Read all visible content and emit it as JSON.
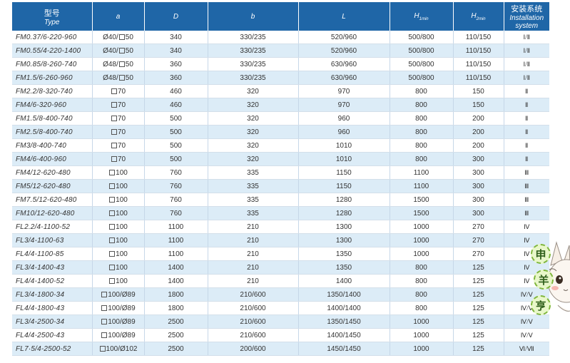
{
  "header": {
    "type_cn": "型号",
    "type_en": "Type",
    "a": "a",
    "D": "D",
    "b": "b",
    "L": "L",
    "H1": "H",
    "H1_sub": "1min",
    "H2": "H",
    "H2_sub": "2min",
    "install_cn": "安装系统",
    "install_en": "Installation system"
  },
  "rows": [
    {
      "type": "FM0.37/6-220-960",
      "a_prefix": "Ø40/",
      "a_square": true,
      "a_num": "50",
      "D": "340",
      "b": "330/235",
      "L": "520/960",
      "H1": "500/800",
      "H2": "110/150",
      "sys": "Ⅰ/Ⅱ"
    },
    {
      "type": "FM0.55/4-220-1400",
      "a_prefix": "Ø40/",
      "a_square": true,
      "a_num": "50",
      "D": "340",
      "b": "330/235",
      "L": "520/960",
      "H1": "500/800",
      "H2": "110/150",
      "sys": "Ⅰ/Ⅱ"
    },
    {
      "type": "FM0.85/8-260-740",
      "a_prefix": "Ø48/",
      "a_square": true,
      "a_num": "50",
      "D": "360",
      "b": "330/235",
      "L": "630/960",
      "H1": "500/800",
      "H2": "110/150",
      "sys": "Ⅰ/Ⅱ"
    },
    {
      "type": "FM1.5/6-260-960",
      "a_prefix": "Ø48/",
      "a_square": true,
      "a_num": "50",
      "D": "360",
      "b": "330/235",
      "L": "630/960",
      "H1": "500/800",
      "H2": "110/150",
      "sys": "Ⅰ/Ⅱ"
    },
    {
      "type": "FM2.2/8-320-740",
      "a_prefix": "",
      "a_square": true,
      "a_num": "70",
      "D": "460",
      "b": "320",
      "L": "970",
      "H1": "800",
      "H2": "150",
      "sys": "Ⅱ"
    },
    {
      "type": "FM4/6-320-960",
      "a_prefix": "",
      "a_square": true,
      "a_num": "70",
      "D": "460",
      "b": "320",
      "L": "970",
      "H1": "800",
      "H2": "150",
      "sys": "Ⅱ"
    },
    {
      "type": "FM1.5/8-400-740",
      "a_prefix": "",
      "a_square": true,
      "a_num": "70",
      "D": "500",
      "b": "320",
      "L": "960",
      "H1": "800",
      "H2": "200",
      "sys": "Ⅱ"
    },
    {
      "type": "FM2.5/8-400-740",
      "a_prefix": "",
      "a_square": true,
      "a_num": "70",
      "D": "500",
      "b": "320",
      "L": "960",
      "H1": "800",
      "H2": "200",
      "sys": "Ⅱ"
    },
    {
      "type": "FM3/8-400-740",
      "a_prefix": "",
      "a_square": true,
      "a_num": "70",
      "D": "500",
      "b": "320",
      "L": "1010",
      "H1": "800",
      "H2": "200",
      "sys": "Ⅱ"
    },
    {
      "type": "FM4/6-400-960",
      "a_prefix": "",
      "a_square": true,
      "a_num": "70",
      "D": "500",
      "b": "320",
      "L": "1010",
      "H1": "800",
      "H2": "300",
      "sys": "Ⅱ"
    },
    {
      "type": "FM4/12-620-480",
      "a_prefix": "",
      "a_square": true,
      "a_num": "100",
      "D": "760",
      "b": "335",
      "L": "1150",
      "H1": "1100",
      "H2": "300",
      "sys": "Ⅲ"
    },
    {
      "type": "FM5/12-620-480",
      "a_prefix": "",
      "a_square": true,
      "a_num": "100",
      "D": "760",
      "b": "335",
      "L": "1150",
      "H1": "1100",
      "H2": "300",
      "sys": "Ⅲ"
    },
    {
      "type": "FM7.5/12-620-480",
      "a_prefix": "",
      "a_square": true,
      "a_num": "100",
      "D": "760",
      "b": "335",
      "L": "1280",
      "H1": "1500",
      "H2": "300",
      "sys": "Ⅲ"
    },
    {
      "type": "FM10/12-620-480",
      "a_prefix": "",
      "a_square": true,
      "a_num": "100",
      "D": "760",
      "b": "335",
      "L": "1280",
      "H1": "1500",
      "H2": "300",
      "sys": "Ⅲ"
    },
    {
      "type": "FL2.2/4-1100-52",
      "a_prefix": "",
      "a_square": true,
      "a_num": "100",
      "D": "1100",
      "b": "210",
      "L": "1300",
      "H1": "1000",
      "H2": "270",
      "sys": "Ⅳ"
    },
    {
      "type": "FL3/4-1100-63",
      "a_prefix": "",
      "a_square": true,
      "a_num": "100",
      "D": "1100",
      "b": "210",
      "L": "1300",
      "H1": "1000",
      "H2": "270",
      "sys": "Ⅳ"
    },
    {
      "type": "FL4/4-1100-85",
      "a_prefix": "",
      "a_square": true,
      "a_num": "100",
      "D": "1100",
      "b": "210",
      "L": "1350",
      "H1": "1000",
      "H2": "270",
      "sys": "Ⅳ"
    },
    {
      "type": "FL3/4-1400-43",
      "a_prefix": "",
      "a_square": true,
      "a_num": "100",
      "D": "1400",
      "b": "210",
      "L": "1350",
      "H1": "800",
      "H2": "125",
      "sys": "Ⅳ"
    },
    {
      "type": "FL4/4-1400-52",
      "a_prefix": "",
      "a_square": true,
      "a_num": "100",
      "D": "1400",
      "b": "210",
      "L": "1400",
      "H1": "800",
      "H2": "125",
      "sys": "Ⅳ"
    },
    {
      "type": "FL3/4-1800-34",
      "a_prefix": "",
      "a_square": true,
      "a_num": "100/Ø89",
      "D": "1800",
      "b": "210/600",
      "L": "1350/1400",
      "H1": "800",
      "H2": "125",
      "sys": "Ⅳ/Ⅴ"
    },
    {
      "type": "FL4/4-1800-43",
      "a_prefix": "",
      "a_square": true,
      "a_num": "100/Ø89",
      "D": "1800",
      "b": "210/600",
      "L": "1400/1400",
      "H1": "800",
      "H2": "125",
      "sys": "Ⅳ/Ⅴ"
    },
    {
      "type": "FL3/4-2500-34",
      "a_prefix": "",
      "a_square": true,
      "a_num": "100/Ø89",
      "D": "2500",
      "b": "210/600",
      "L": "1350/1450",
      "H1": "1000",
      "H2": "125",
      "sys": "Ⅳ/Ⅴ"
    },
    {
      "type": "FL4/4-2500-43",
      "a_prefix": "",
      "a_square": true,
      "a_num": "100/Ø89",
      "D": "2500",
      "b": "210/600",
      "L": "1400/1450",
      "H1": "1000",
      "H2": "125",
      "sys": "Ⅳ/Ⅴ"
    },
    {
      "type": "FL7·5/4-2500-52",
      "a_prefix": "",
      "a_square": true,
      "a_num": "100/Ø102",
      "D": "2500",
      "b": "200/600",
      "L": "1450/1450",
      "H1": "1000",
      "H2": "125",
      "sys": "Ⅵ/Ⅶ"
    }
  ],
  "mascot": {
    "badges": [
      "申",
      "羊",
      "亨"
    ]
  },
  "colors": {
    "header_bg": "#1f66a7",
    "row_alt": "#dcecf7",
    "text": "#333333"
  }
}
